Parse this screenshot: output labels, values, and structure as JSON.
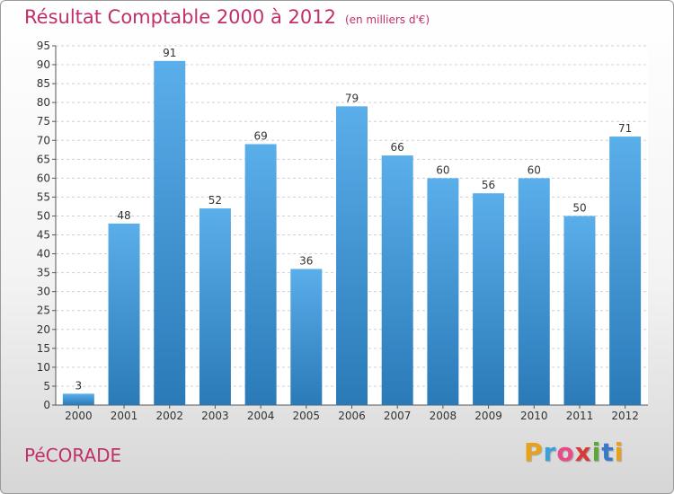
{
  "header": {
    "title": "Résultat Comptable 2000 à 2012",
    "subtitle": "(en milliers d'€)"
  },
  "footer": {
    "commune": "PéCORADE",
    "logo_letters": [
      "P",
      "r",
      "o",
      "x",
      "i",
      "t",
      "i"
    ],
    "logo_colors": [
      "#e8a21a",
      "#3aa0d8",
      "#e84a8a",
      "#d83a3a",
      "#5aa83a",
      "#3a78c8",
      "#e8a21a"
    ]
  },
  "chart_data": {
    "type": "bar",
    "title": "Résultat Comptable 2000 à 2012",
    "subtitle": "(en milliers d'€)",
    "xlabel": "",
    "ylabel": "",
    "categories": [
      "2000",
      "2001",
      "2002",
      "2003",
      "2004",
      "2005",
      "2006",
      "2007",
      "2008",
      "2009",
      "2010",
      "2011",
      "2012"
    ],
    "values": [
      3,
      48,
      91,
      52,
      69,
      36,
      79,
      66,
      60,
      56,
      60,
      50,
      71
    ],
    "value_labels": [
      "3",
      "48",
      "91",
      "52",
      "69",
      "36",
      "79",
      "66",
      "60",
      "56",
      "60",
      "50",
      "71"
    ],
    "ylim": [
      0,
      95
    ],
    "yticks": [
      0,
      5,
      10,
      15,
      20,
      25,
      30,
      35,
      40,
      45,
      50,
      55,
      60,
      65,
      70,
      75,
      80,
      85,
      90,
      95
    ],
    "ytick_labels": [
      "0",
      "5",
      "10",
      "15",
      "20",
      "25",
      "30",
      "35",
      "40",
      "45",
      "50",
      "55",
      "60",
      "65",
      "70",
      "75",
      "80",
      "85",
      "90",
      "95"
    ],
    "grid": true,
    "bar_color_top": "#5aaeea",
    "bar_color_bottom": "#2a7ab8"
  }
}
